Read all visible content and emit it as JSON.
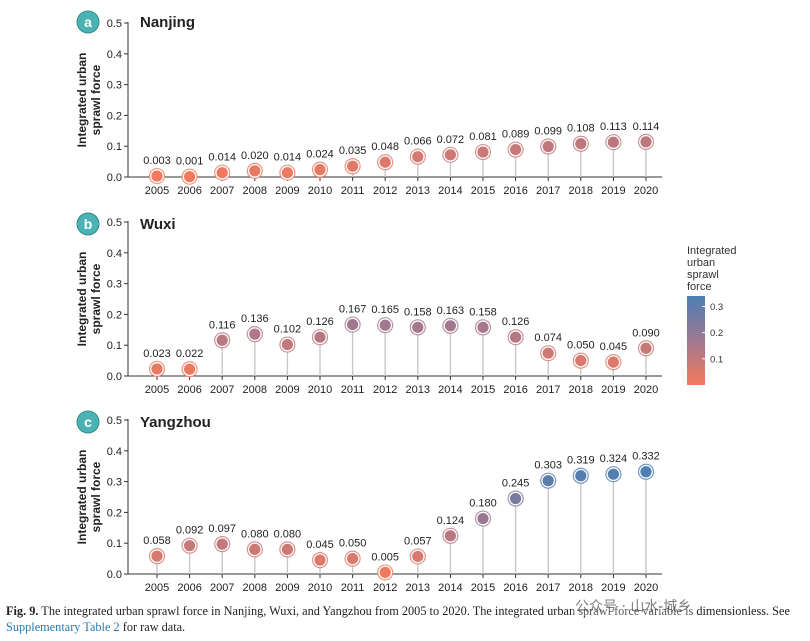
{
  "chart_data": {
    "type": "lollipop",
    "x": [
      "2005",
      "2006",
      "2007",
      "2008",
      "2009",
      "2010",
      "2011",
      "2012",
      "2013",
      "2014",
      "2015",
      "2016",
      "2017",
      "2018",
      "2019",
      "2020"
    ],
    "ylabel": "Integrated urban sprawl force",
    "ylim": [
      0,
      0.5
    ],
    "yticks": [
      "0.0",
      "0.1",
      "0.2",
      "0.3",
      "0.4",
      "0.5"
    ],
    "panels": [
      {
        "letter": "a",
        "name": "Nanjing",
        "values": [
          0.003,
          0.001,
          0.014,
          0.02,
          0.014,
          0.024,
          0.035,
          0.048,
          0.066,
          0.072,
          0.081,
          0.089,
          0.099,
          0.108,
          0.113,
          0.114
        ],
        "labels": [
          "0.003",
          "0.001",
          "0.014",
          "0.020",
          "0.014",
          "0.024",
          "0.035",
          "0.048",
          "0.066",
          "0.072",
          "0.081",
          "0.089",
          "0.099",
          "0.108",
          "0.113",
          "0.114"
        ]
      },
      {
        "letter": "b",
        "name": "Wuxi",
        "values": [
          0.023,
          0.022,
          0.116,
          0.136,
          0.102,
          0.126,
          0.167,
          0.165,
          0.158,
          0.163,
          0.158,
          0.126,
          0.074,
          0.05,
          0.045,
          0.09
        ],
        "labels": [
          "0.023",
          "0.022",
          "0.116",
          "0.136",
          "0.102",
          "0.126",
          "0.167",
          "0.165",
          "0.158",
          "0.163",
          "0.158",
          "0.126",
          "0.074",
          "0.050",
          "0.045",
          "0.090"
        ]
      },
      {
        "letter": "c",
        "name": "Yangzhou",
        "values": [
          0.058,
          0.092,
          0.097,
          0.08,
          0.08,
          0.045,
          0.05,
          0.005,
          0.057,
          0.124,
          0.18,
          0.245,
          0.303,
          0.319,
          0.324,
          0.332
        ],
        "labels": [
          "0.058",
          "0.092",
          "0.097",
          "0.080",
          "0.080",
          "0.045",
          "0.050",
          "0.005",
          "0.057",
          "0.124",
          "0.180",
          "0.245",
          "0.303",
          "0.319",
          "0.324",
          "0.332"
        ]
      }
    ],
    "legend": {
      "title": [
        "Integrated",
        "urban",
        "sprawl",
        "force"
      ],
      "ticks": [
        "0.3",
        "0.2",
        "0.1"
      ],
      "tick_values": [
        0.3,
        0.2,
        0.1
      ],
      "range": [
        0,
        0.34
      ],
      "colors": [
        "#f4795c",
        "#4a7fb3"
      ]
    }
  },
  "caption": {
    "label": "Fig. 9.",
    "text": " The integrated urban sprawl force in Nanjing, Wuxi, and Yangzhou from 2005 to 2020. The integrated urban sprawl force variable is dimensionless. See ",
    "link": "Supplementary Table 2",
    "tail": " for raw data."
  },
  "watermark": "公众号 · 山水-城乡"
}
